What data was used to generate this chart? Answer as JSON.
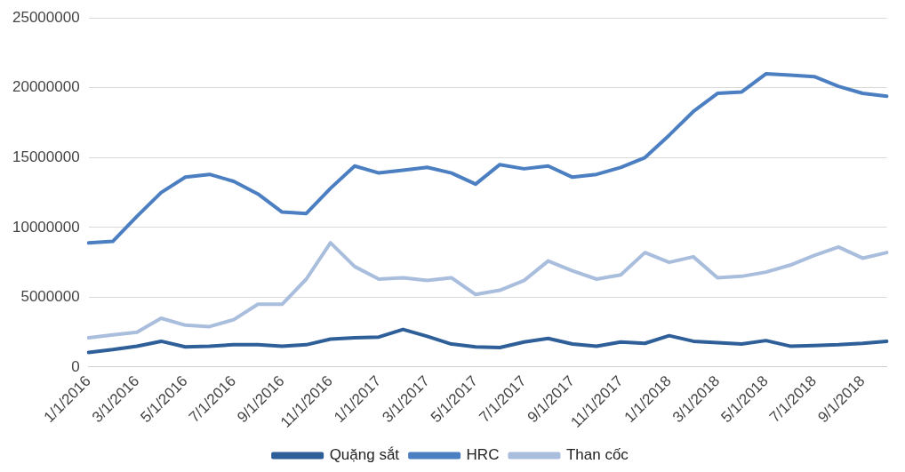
{
  "chart_data": {
    "type": "line",
    "categories": [
      "1/1/2016",
      null,
      "3/1/2016",
      null,
      "5/1/2016",
      null,
      "7/1/2016",
      null,
      "9/1/2016",
      null,
      "11/1/2016",
      null,
      "1/1/2017",
      null,
      "3/1/2017",
      null,
      "5/1/2017",
      null,
      "7/1/2017",
      null,
      "9/1/2017",
      null,
      "11/1/2017",
      null,
      "1/1/2018",
      null,
      "3/1/2018",
      null,
      "5/1/2018",
      null,
      "7/1/2018",
      null,
      "9/1/2018",
      null
    ],
    "series": [
      {
        "name": "Quặng sắt",
        "color": "#2f5f98",
        "values": [
          1050000,
          1250000,
          1500000,
          1850000,
          1450000,
          1500000,
          1600000,
          1600000,
          1500000,
          1600000,
          2000000,
          2100000,
          2150000,
          2700000,
          2200000,
          1650000,
          1450000,
          1400000,
          1800000,
          2050000,
          1650000,
          1500000,
          1800000,
          1700000,
          2250000,
          1850000,
          1750000,
          1650000,
          1900000,
          1500000,
          1550000,
          1600000,
          1700000,
          1850000
        ]
      },
      {
        "name": "HRC",
        "color": "#4b7fc2",
        "values": [
          8900000,
          9000000,
          10800000,
          12500000,
          13600000,
          13800000,
          13300000,
          12400000,
          11100000,
          11000000,
          12800000,
          14400000,
          13900000,
          14100000,
          14300000,
          13900000,
          13100000,
          14500000,
          14200000,
          14400000,
          13600000,
          13800000,
          14300000,
          15000000,
          16600000,
          18300000,
          19600000,
          19700000,
          21000000,
          20900000,
          20800000,
          20100000,
          19600000,
          19400000
        ]
      },
      {
        "name": "Than cốc",
        "color": "#a9bddd",
        "values": [
          2100000,
          2300000,
          2500000,
          3500000,
          3000000,
          2900000,
          3400000,
          4500000,
          4500000,
          6300000,
          8900000,
          7200000,
          6300000,
          6400000,
          6200000,
          6400000,
          5200000,
          5500000,
          6200000,
          7600000,
          6900000,
          6300000,
          6600000,
          8200000,
          7500000,
          7900000,
          6400000,
          6500000,
          6800000,
          7300000,
          8000000,
          8600000,
          7800000,
          8200000
        ]
      }
    ],
    "ylim": [
      0,
      25000000
    ],
    "yticks": [
      0,
      5000000,
      10000000,
      15000000,
      20000000,
      25000000
    ],
    "grid": "y",
    "legend": "bottom",
    "marker": "none",
    "line_style": "solid"
  }
}
